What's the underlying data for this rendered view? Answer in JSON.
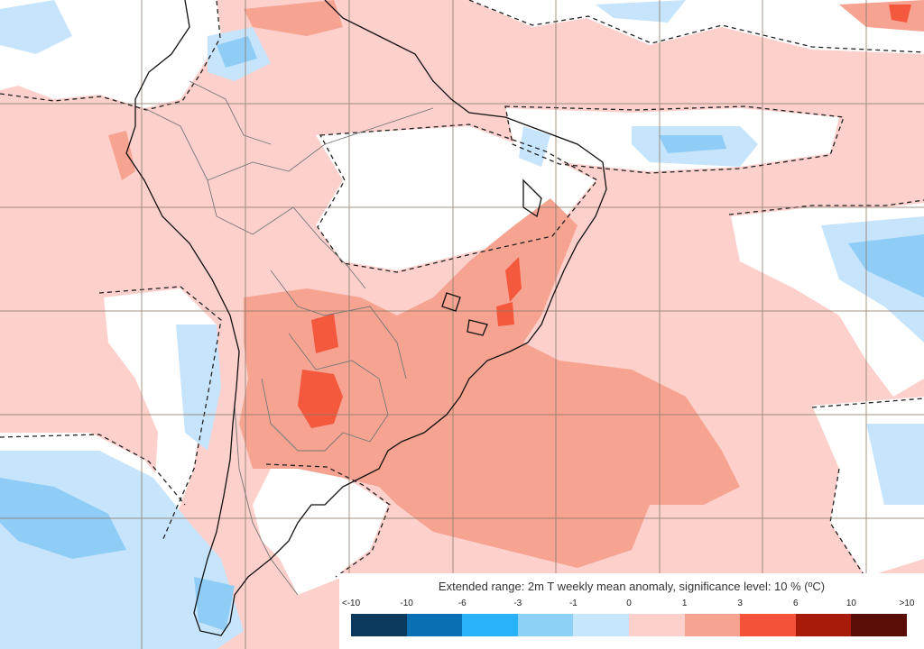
{
  "map": {
    "region": "South America and surrounding oceans",
    "colors": {
      "background_anomaly": "#fdd0cc",
      "neutral": "#ffffff",
      "warm_1_3": "#f6a391",
      "warm_3_6": "#f4583d",
      "cool_0_1": "#c6e4fb",
      "cool_1_3": "#8fcdf6",
      "coast": "#111111",
      "borders": "#777777",
      "grid": "#8a7a6a",
      "significance_contour": "#222222"
    }
  },
  "legend": {
    "title": "Extended range: 2m T weekly mean anomaly, significance level: 10 % (ºC)",
    "ticks": [
      "<-10",
      "-10",
      "-6",
      "-3",
      "-1",
      "0",
      "1",
      "3",
      "6",
      "10",
      ">10"
    ],
    "bins": [
      {
        "color": "#0b3a5e"
      },
      {
        "color": "#0a6fb3"
      },
      {
        "color": "#29b2f7"
      },
      {
        "color": "#8ed1f7"
      },
      {
        "color": "#c6e6fb"
      },
      {
        "color": "#fdd0cc"
      },
      {
        "color": "#f6a391"
      },
      {
        "color": "#f4533a"
      },
      {
        "color": "#a81b0b"
      },
      {
        "color": "#5a0d05"
      }
    ]
  }
}
